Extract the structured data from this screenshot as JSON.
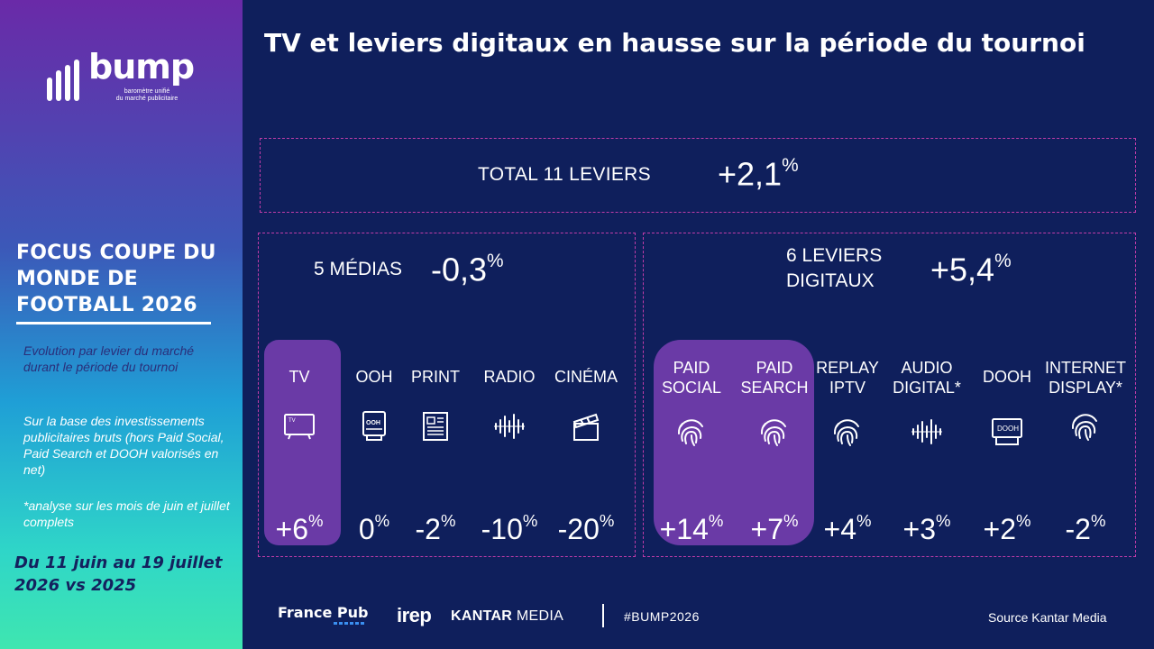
{
  "sidebar": {
    "logo_word": "bump",
    "logo_sub_1": "baromètre unifié",
    "logo_sub_2": "du marché publicitaire",
    "focus_title": "FOCUS COUPE DU MONDE DE FOOTBALL 2026",
    "note1": "Evolution par levier du marché durant le période du tournoi",
    "note2": "Sur la base des investissements publicitaires bruts (hors Paid Social, Paid Search et DOOH valorisés en net)",
    "note3": "*analyse sur les mois de juin et juillet complets",
    "dates": "Du 11 juin au 19 juillet 2026 vs 2025"
  },
  "title": "TV et leviers digitaux en hausse sur la période du tournoi",
  "total": {
    "label": "TOTAL 11 LEVIERS",
    "value": "+2,1",
    "unit": "%"
  },
  "medias": {
    "label": "5 MÉDIAS",
    "value": "-0,3",
    "unit": "%",
    "items": [
      {
        "name": "TV",
        "icon": "tv-icon",
        "value": "+6",
        "unit": "%",
        "highlight": true
      },
      {
        "name": "OOH",
        "icon": "ooh-panel-icon",
        "value": "0",
        "unit": "%"
      },
      {
        "name": "PRINT",
        "icon": "newspaper-icon",
        "value": "-2",
        "unit": "%"
      },
      {
        "name": "RADIO",
        "icon": "audio-wave-icon",
        "value": "-10",
        "unit": "%"
      },
      {
        "name": "CINÉMA",
        "icon": "clapperboard-icon",
        "value": "-20",
        "unit": "%"
      }
    ],
    "tv_icon_text": "TV",
    "ooh_icon_text": "OOH"
  },
  "digital": {
    "label_1": "6 LEVIERS",
    "label_2": "DIGITAUX",
    "value": "+5,4",
    "unit": "%",
    "items": [
      {
        "name_1": "PAID",
        "name_2": "SOCIAL",
        "icon": "fingerprint-icon",
        "value": "+14",
        "unit": "%",
        "highlight": true
      },
      {
        "name_1": "PAID",
        "name_2": "SEARCH",
        "icon": "fingerprint-icon",
        "value": "+7",
        "unit": "%",
        "highlight": true
      },
      {
        "name_1": "REPLAY",
        "name_2": "IPTV",
        "icon": "fingerprint-icon",
        "value": "+4",
        "unit": "%"
      },
      {
        "name_1": "AUDIO",
        "name_2": "DIGITAL*",
        "icon": "audio-wave-icon",
        "value": "+3",
        "unit": "%"
      },
      {
        "name_1": "DOOH",
        "name_2": "",
        "icon": "dooh-screen-icon",
        "value": "+2",
        "unit": "%"
      },
      {
        "name_1": "INTERNET",
        "name_2": "DISPLAY*",
        "icon": "fingerprint-icon",
        "value": "-2",
        "unit": "%"
      }
    ],
    "dooh_icon_text": "DOOH"
  },
  "footer": {
    "francepub": "France Pub",
    "irep": "irep",
    "kantar_bold": "KANTAR",
    "kantar_light": " MEDIA",
    "hashtag": "#BUMP2026",
    "source": "Source Kantar Media"
  },
  "colors": {
    "background": "#0f1f5c",
    "highlight": "#6a3aa6",
    "dashed_border": "#c03ca8"
  }
}
